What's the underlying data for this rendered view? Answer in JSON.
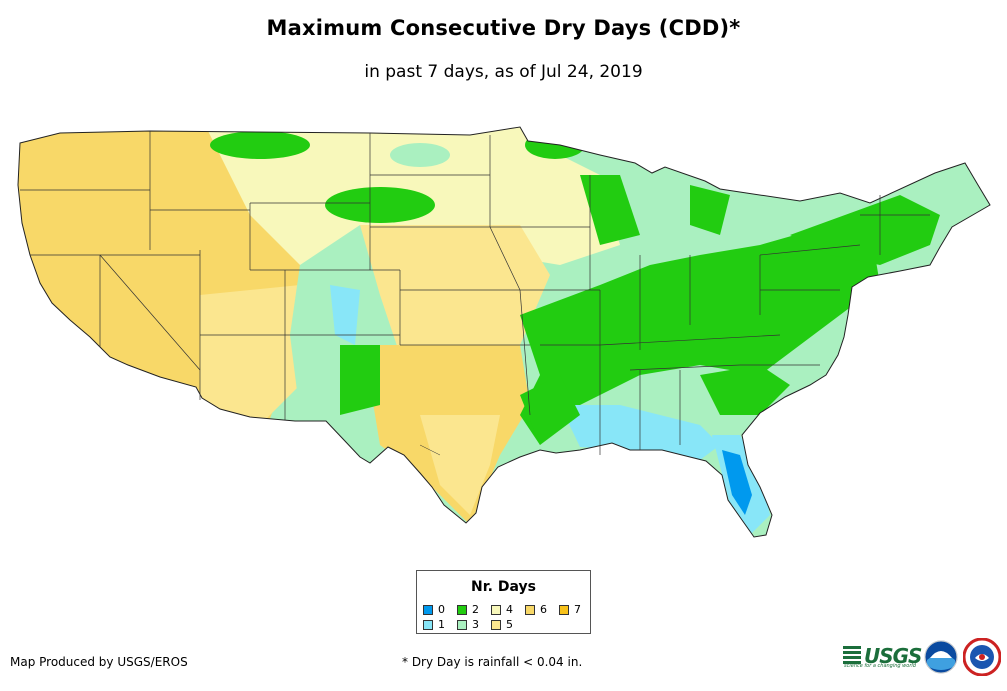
{
  "title": "Maximum Consecutive Dry Days (CDD)*",
  "subtitle": "in past 7 days, as of Jul 24, 2019",
  "legend": {
    "title": "Nr. Days",
    "items": [
      {
        "label": "0",
        "color": "#0099ee"
      },
      {
        "label": "1",
        "color": "#88e6f8"
      },
      {
        "label": "2",
        "color": "#22cc11"
      },
      {
        "label": "3",
        "color": "#aaf0c0"
      },
      {
        "label": "4",
        "color": "#f8f8bb"
      },
      {
        "label": "5",
        "color": "#fbe68f"
      },
      {
        "label": "6",
        "color": "#f8d868"
      },
      {
        "label": "7",
        "color": "#f8c21a"
      }
    ]
  },
  "footer": {
    "credit": "Map Produced by USGS/EROS",
    "note": "* Dry Day is rainfall < 0.04 in."
  },
  "logos": {
    "usgs_text": "USGS",
    "usgs_tagline": "science for a changing world"
  }
}
